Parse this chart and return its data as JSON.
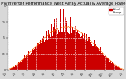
{
  "title": "Solar PV/Inverter Performance West Array Actual & Average Power Output",
  "title_fontsize": 3.8,
  "bg_color": "#d8d8d8",
  "plot_bg_color": "#ffffff",
  "bar_color": "#cc0000",
  "avg_line_color": "#ff6600",
  "legend_actual_color": "#cc0000",
  "legend_avg_color": "#0000cc",
  "legend_actual_label": "Actual",
  "legend_avg_label": "Average",
  "ylim": [
    0,
    1
  ],
  "n_bars": 210,
  "grid_color": "#ffffff"
}
